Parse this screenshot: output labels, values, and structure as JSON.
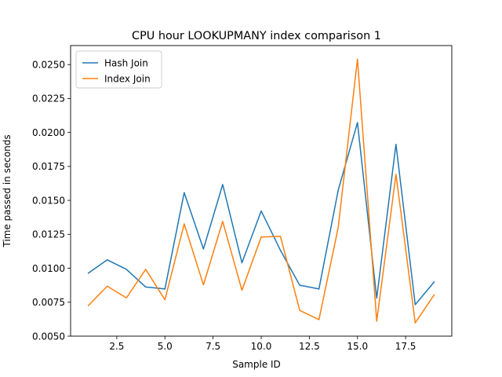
{
  "chart_data": {
    "type": "line",
    "title": "CPU hour LOOKUPMANY index comparison 1",
    "xlabel": "Sample ID",
    "ylabel": "Time passed in seconds",
    "xlim": [
      0.1,
      19.9
    ],
    "ylim": [
      0.005,
      0.0264
    ],
    "xticks": [
      2.5,
      5.0,
      7.5,
      10.0,
      12.5,
      15.0,
      17.5
    ],
    "xtick_labels": [
      "2.5",
      "5.0",
      "7.5",
      "10.0",
      "12.5",
      "15.0",
      "17.5"
    ],
    "yticks": [
      0.005,
      0.0075,
      0.01,
      0.0125,
      0.015,
      0.0175,
      0.02,
      0.0225,
      0.025
    ],
    "ytick_labels": [
      "0.0050",
      "0.0075",
      "0.0100",
      "0.0125",
      "0.0150",
      "0.0175",
      "0.0200",
      "0.0225",
      "0.0250"
    ],
    "grid": false,
    "legend_position": "top-left",
    "x": [
      1,
      2,
      3,
      4,
      5,
      6,
      7,
      8,
      9,
      10,
      11,
      12,
      13,
      14,
      15,
      16,
      17,
      18,
      19
    ],
    "series": [
      {
        "name": "Hash Join",
        "color": "#1f77b4",
        "values": [
          0.00962,
          0.01062,
          0.00992,
          0.00862,
          0.00848,
          0.01557,
          0.01142,
          0.01617,
          0.0104,
          0.01422,
          0.01132,
          0.00875,
          0.00848,
          0.01575,
          0.02073,
          0.0078,
          0.01913,
          0.00732,
          0.00902
        ]
      },
      {
        "name": "Index Join",
        "color": "#ff7f0e",
        "values": [
          0.00722,
          0.00868,
          0.00782,
          0.00992,
          0.00768,
          0.01327,
          0.00878,
          0.01345,
          0.00838,
          0.0123,
          0.01235,
          0.0069,
          0.00622,
          0.013,
          0.0254,
          0.0061,
          0.01692,
          0.00598,
          0.00808
        ]
      }
    ]
  }
}
